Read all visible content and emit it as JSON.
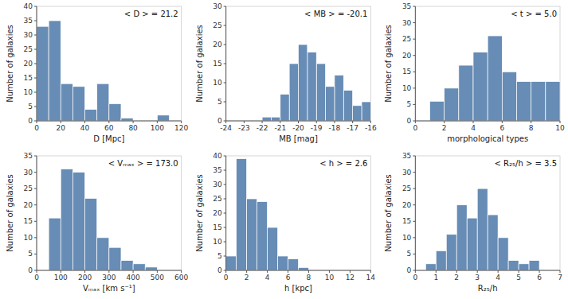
{
  "chart_data": [
    {
      "type": "histogram",
      "title": "< D > = 21.2",
      "xlabel": "D [Mpc]",
      "ylabel": "Number of galaxies",
      "bins": [
        0,
        10,
        20,
        30,
        40,
        50,
        60,
        70,
        80,
        90,
        100,
        110,
        120
      ],
      "values": [
        33,
        35,
        13,
        12,
        4,
        13,
        6,
        1,
        0,
        0,
        2,
        0
      ],
      "xlim": [
        0,
        120
      ],
      "ylim": [
        0,
        40
      ],
      "xticks": [
        0,
        20,
        40,
        60,
        80,
        100,
        120
      ],
      "yticks": [
        0,
        5,
        10,
        15,
        20,
        25,
        30,
        35,
        40
      ],
      "color": "#4c78a8",
      "grid": false
    },
    {
      "type": "histogram",
      "title": "< MB > = -20.1",
      "xlabel": "MB [mag]",
      "ylabel": "Number of galaxies",
      "bins": [
        -16,
        -16.5,
        -17,
        -17.5,
        -18,
        -18.5,
        -19,
        -19.5,
        -20,
        -20.5,
        -21,
        -21.5,
        -22
      ],
      "values": [
        5,
        4,
        8,
        12,
        9,
        15,
        18,
        20,
        15,
        7,
        1,
        1
      ],
      "xlim": [
        -24,
        -16
      ],
      "ylim": [
        0,
        30
      ],
      "xticks": [
        -16,
        -17,
        -18,
        -19,
        -20,
        -21,
        -22,
        -23,
        -24
      ],
      "yticks": [
        0,
        5,
        10,
        15,
        20,
        25,
        30
      ],
      "color": "#4c78a8",
      "grid": false
    },
    {
      "type": "histogram",
      "title": "< t > = 5.0",
      "xlabel": "morphological types",
      "ylabel": "Number of galaxies",
      "bins": [
        0,
        1,
        2,
        3,
        4,
        5,
        6,
        7,
        8,
        9,
        10
      ],
      "values": [
        0,
        6,
        10,
        17,
        21,
        26,
        15,
        12,
        12,
        12
      ],
      "xlim": [
        0,
        10
      ],
      "ylim": [
        0,
        35
      ],
      "xticks": [
        0,
        2,
        4,
        6,
        8,
        10
      ],
      "yticks": [
        0,
        5,
        10,
        15,
        20,
        25,
        30,
        35
      ],
      "color": "#4c78a8",
      "grid": false
    },
    {
      "type": "histogram",
      "title": "< Vₘₐₓ > = 173.0",
      "xlabel": "Vₘₐₓ [km s⁻¹]",
      "ylabel": "Number of galaxies",
      "bins": [
        50,
        100,
        150,
        200,
        250,
        300,
        350,
        400,
        450,
        500
      ],
      "values": [
        16,
        31,
        30,
        22,
        10,
        7,
        3,
        2,
        1
      ],
      "xlim": [
        0,
        600
      ],
      "ylim": [
        0,
        35
      ],
      "xticks": [
        0,
        100,
        200,
        300,
        400,
        500,
        600
      ],
      "yticks": [
        0,
        5,
        10,
        15,
        20,
        25,
        30,
        35
      ],
      "color": "#4c78a8",
      "grid": false
    },
    {
      "type": "histogram",
      "title": "< h > = 2.6",
      "xlabel": "h [kpc]",
      "ylabel": "Number of galaxies",
      "bins": [
        0,
        1,
        2,
        3,
        4,
        5,
        6,
        7,
        8
      ],
      "values": [
        5,
        39,
        25,
        24,
        15,
        5,
        4,
        1
      ],
      "xlim": [
        0,
        14
      ],
      "ylim": [
        0,
        40
      ],
      "xticks": [
        0,
        2,
        4,
        6,
        8,
        10,
        12,
        14
      ],
      "yticks": [
        0,
        5,
        10,
        15,
        20,
        25,
        30,
        35,
        40
      ],
      "color": "#4c78a8",
      "grid": false
    },
    {
      "type": "histogram",
      "title": "< R₂₅/h > = 3.5",
      "xlabel": "R₂₅/h",
      "ylabel": "Number of galaxies",
      "bins": [
        0.5,
        1,
        1.5,
        2,
        2.5,
        3,
        3.5,
        4,
        4.5,
        5,
        5.5,
        6
      ],
      "values": [
        2,
        6,
        11,
        20,
        16,
        25,
        17,
        10,
        3,
        2,
        3
      ],
      "xlim": [
        0,
        7
      ],
      "ylim": [
        0,
        35
      ],
      "xticks": [
        0,
        1,
        2,
        3,
        4,
        5,
        6,
        7
      ],
      "yticks": [
        0,
        5,
        10,
        15,
        20,
        25,
        30,
        35
      ],
      "color": "#4c78a8",
      "grid": false
    }
  ]
}
